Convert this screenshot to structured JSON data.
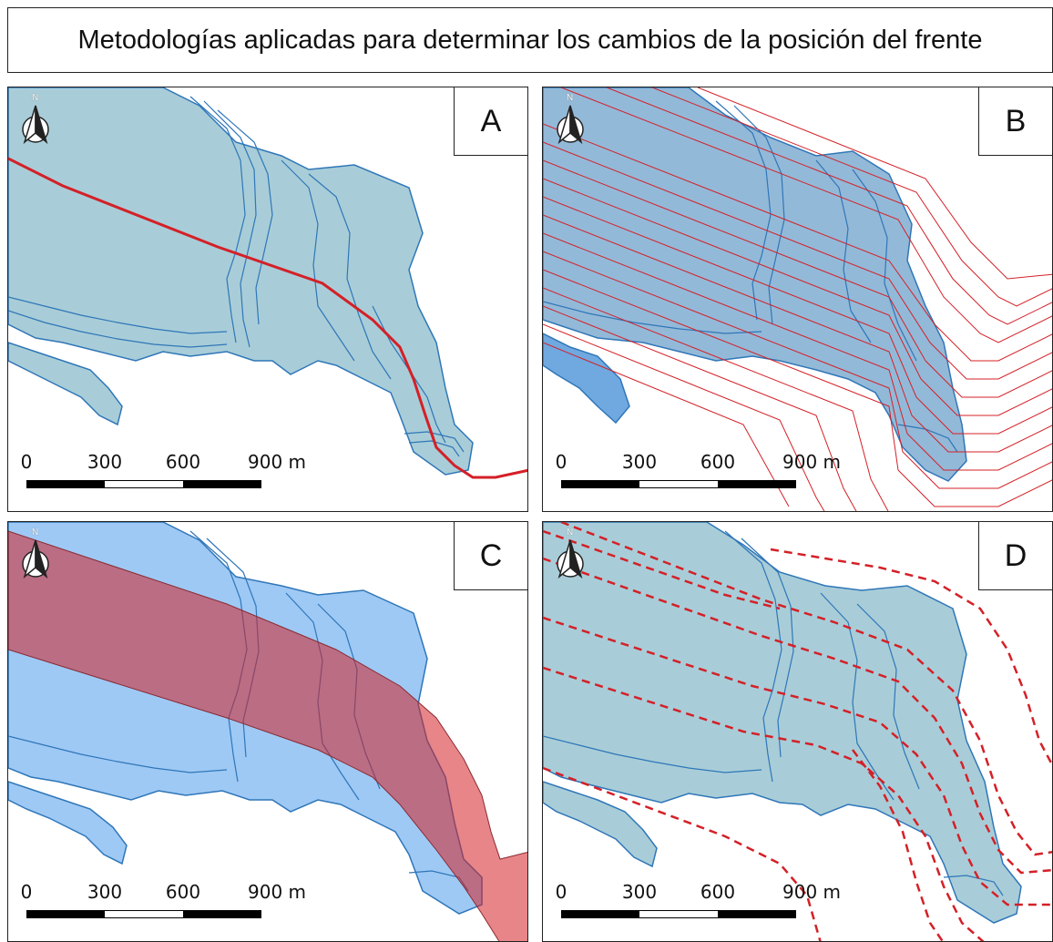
{
  "title": "Metodologías aplicadas para determinar los cambios de la posición del frente",
  "north_label": "N",
  "scale": {
    "ticks": [
      "0",
      "300",
      "600",
      "900 m"
    ]
  },
  "panels": [
    {
      "label": "A",
      "method": "centerline"
    },
    {
      "label": "B",
      "method": "parallel-lines"
    },
    {
      "label": "C",
      "method": "rectangle-box"
    },
    {
      "label": "D",
      "method": "curvilinear-lines"
    }
  ],
  "colors": {
    "glacier_fill": "#a8cdd8",
    "glacier_outline": "#2f76b8",
    "glacier_fill_blue": "#9ec9f5",
    "red_line": "#d42027",
    "box_fill": "#c05a6a"
  }
}
